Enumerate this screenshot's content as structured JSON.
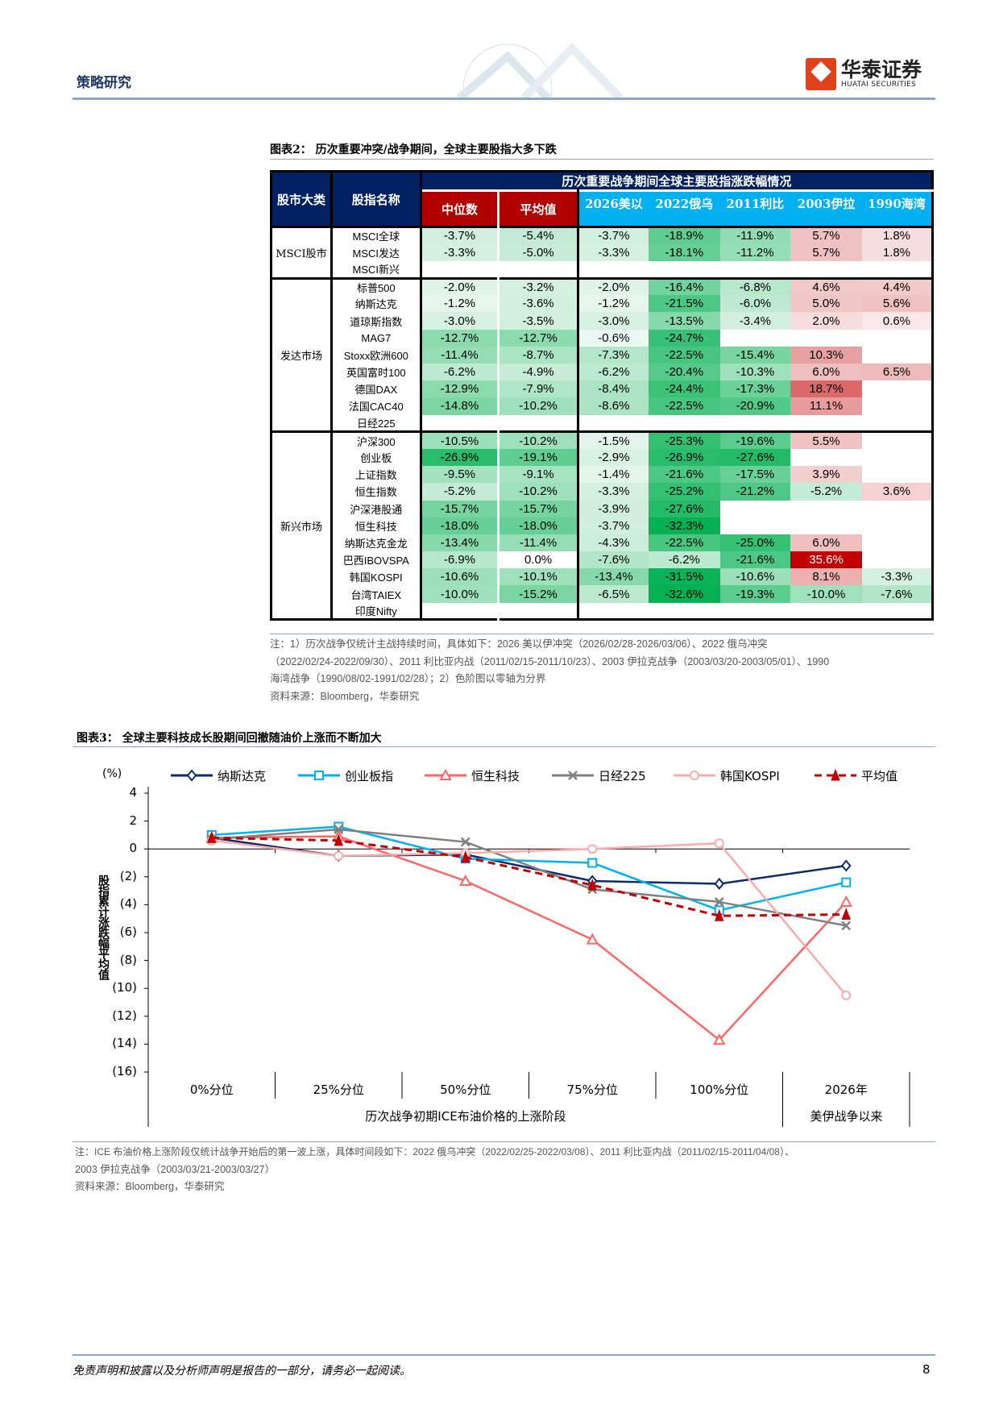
{
  "header": {
    "section": "策略研究",
    "logo_cn": "华泰证券",
    "logo_en": "HUATAI SECURITIES"
  },
  "figure2": {
    "title": "图表2： 历次重要冲突/战争期间，全球主要股指大多下跌",
    "table_title": "历次重要战争期间全球主要股指涨跌幅情况",
    "col_headers": [
      "股市大类",
      "股指名称",
      "中位数",
      "平均值",
      "2026美以",
      "2022俄乌",
      "2011利比",
      "2003伊拉",
      "1990海湾"
    ],
    "groups": [
      {
        "category": "MSCI股市",
        "rows": [
          {
            "name": "MSCI全球",
            "values": [
              -3.7,
              -5.4,
              -3.7,
              -18.9,
              -11.9,
              5.7,
              1.8
            ]
          },
          {
            "name": "MSCI发达",
            "values": [
              -3.3,
              -5.0,
              -3.3,
              -18.1,
              -11.2,
              5.7,
              1.8
            ]
          },
          {
            "name": "MSCI新兴",
            "values": [
              null,
              null,
              null,
              null,
              null,
              null,
              null
            ]
          }
        ]
      },
      {
        "category": "发达市场",
        "rows": [
          {
            "name": "标普500",
            "values": [
              -2.0,
              -3.2,
              -2.0,
              -16.4,
              -6.8,
              4.6,
              4.4
            ]
          },
          {
            "name": "纳斯达克",
            "values": [
              -1.2,
              -3.6,
              -1.2,
              -21.5,
              -6.0,
              5.0,
              5.6
            ]
          },
          {
            "name": "道琼斯指数",
            "values": [
              -3.0,
              -3.5,
              -3.0,
              -13.5,
              -3.4,
              2.0,
              0.6
            ]
          },
          {
            "name": "MAG7",
            "values": [
              -12.7,
              -12.7,
              -0.6,
              -24.7,
              null,
              null,
              null
            ]
          },
          {
            "name": "Stoxx欧洲600",
            "values": [
              -11.4,
              -8.7,
              -7.3,
              -22.5,
              -15.4,
              10.3,
              null
            ]
          },
          {
            "name": "英国富时100",
            "values": [
              -6.2,
              -4.9,
              -6.2,
              -20.4,
              -10.3,
              6.0,
              6.5
            ]
          },
          {
            "name": "德国DAX",
            "values": [
              -12.9,
              -7.9,
              -8.4,
              -24.4,
              -17.3,
              18.7,
              null
            ]
          },
          {
            "name": "法国CAC40",
            "values": [
              -14.8,
              -10.2,
              -8.6,
              -22.5,
              -20.9,
              11.1,
              null
            ]
          },
          {
            "name": "日经225",
            "values": [
              null,
              null,
              null,
              null,
              null,
              null,
              null
            ]
          }
        ]
      },
      {
        "category": "新兴市场",
        "rows": [
          {
            "name": "沪深300",
            "values": [
              -10.5,
              -10.2,
              -1.5,
              -25.3,
              -19.6,
              5.5,
              null
            ]
          },
          {
            "name": "创业板",
            "values": [
              -26.9,
              -19.1,
              -2.9,
              -26.9,
              -27.6,
              null,
              null
            ]
          },
          {
            "name": "上证指数",
            "values": [
              -9.5,
              -9.1,
              -1.4,
              -21.6,
              -17.5,
              3.9,
              null
            ]
          },
          {
            "name": "恒生指数",
            "values": [
              -5.2,
              -10.2,
              -3.3,
              -25.2,
              -21.2,
              -5.2,
              3.6
            ]
          },
          {
            "name": "沪深港股通",
            "values": [
              -15.7,
              -15.7,
              -3.9,
              -27.6,
              null,
              null,
              null
            ]
          },
          {
            "name": "恒生科技",
            "values": [
              -18.0,
              -18.0,
              -3.7,
              -32.3,
              null,
              null,
              null
            ]
          },
          {
            "name": "纳斯达克金龙",
            "values": [
              -13.4,
              -11.4,
              -4.3,
              -22.5,
              -25.0,
              6.0,
              null
            ]
          },
          {
            "name": "巴西IBOVSPA",
            "values": [
              -6.9,
              0.0,
              -7.6,
              -6.2,
              -21.6,
              35.6,
              null
            ]
          },
          {
            "name": "韩国KOSPI",
            "values": [
              -10.6,
              -10.1,
              -13.4,
              -31.5,
              -10.6,
              8.1,
              -3.3
            ]
          },
          {
            "name": "台湾TAIEX",
            "values": [
              -10.0,
              -15.2,
              -6.5,
              -32.6,
              -19.3,
              -10.0,
              -7.6
            ]
          },
          {
            "name": "印度Nifty",
            "values": [
              null,
              null,
              null,
              null,
              null,
              null,
              null
            ]
          }
        ]
      }
    ],
    "colors": {
      "negative": "#00b050",
      "positive": "#c00000",
      "header_navy": "#002060",
      "header_red": "#b00000",
      "header_blue": "#00b0f0"
    },
    "notes": [
      "注：1）历次战争仅统计主战持续时间，具体如下：2026 美以伊冲突（2026/02/28-2026/03/06）、2022 俄乌冲突",
      "（2022/02/24-2022/09/30）、2011 利比亚内战（2011/02/15-2011/10/23）、2003 伊拉克战争（2003/03/20-2003/05/01）、1990",
      "海湾战争（1990/08/02-1991/02/28）；2）色阶图以零轴为分界",
      "资料来源：Bloomberg，华泰研究"
    ]
  },
  "figure3": {
    "title": "图表3： 全球主要科技成长股期间回撤随油价上涨而不断加大",
    "notes": [
      "注：ICE 布油价格上涨阶段仅统计战争开始后的第一波上涨，具体时间段如下：2022 俄乌冲突（2022/02/25-2022/03/08）、2011 利比亚内战（2011/02/15-2011/04/08）、",
      "2003 伊拉克战争（2003/03/21-2003/03/27）",
      "资料来源：Bloomberg，华泰研究"
    ]
  },
  "chart_data": {
    "type": "line",
    "unit_label": "(%)",
    "ylabel": "股指累计涨跌幅平均值",
    "ylim": [
      -16,
      4
    ],
    "yticks": [
      4,
      2,
      0,
      -2,
      -4,
      -6,
      -8,
      -10,
      -12,
      -14,
      -16
    ],
    "ytick_labels": [
      "4",
      "2",
      "0",
      "(2)",
      "(4)",
      "(6)",
      "(8)",
      "(10)",
      "(12)",
      "(14)",
      "(16)"
    ],
    "categories": [
      "0%分位",
      "25%分位",
      "50%分位",
      "75%分位",
      "100%分位",
      "2026年"
    ],
    "category_groups": [
      {
        "label": "历次战争初期ICE布油价格的上涨阶段",
        "span": 5
      },
      {
        "label": "美伊战争以来",
        "span": 1
      }
    ],
    "grid": false,
    "legend": "top",
    "series": [
      {
        "name": "纳斯达克",
        "values": [
          0.8,
          -0.5,
          -0.4,
          -2.3,
          -2.5,
          -1.2
        ],
        "color": "#0d2a6b",
        "marker": "diamond",
        "dash": false
      },
      {
        "name": "创业板指",
        "values": [
          1.0,
          1.6,
          -0.7,
          -1.0,
          -4.4,
          -2.4
        ],
        "color": "#00b0f0",
        "marker": "square",
        "dash": false
      },
      {
        "name": "恒生科技",
        "values": [
          0.8,
          0.9,
          -2.3,
          -6.5,
          -13.7,
          -3.8
        ],
        "color": "#ff6666",
        "marker": "triangle",
        "dash": false
      },
      {
        "name": "日经225",
        "values": [
          0.7,
          1.4,
          0.5,
          -2.9,
          -3.8,
          -5.5
        ],
        "color": "#808080",
        "marker": "x",
        "dash": false
      },
      {
        "name": "韩国KOSPI",
        "values": [
          0.6,
          -0.5,
          -0.3,
          0.0,
          0.4,
          -10.5
        ],
        "color": "#ffaaaa",
        "marker": "circle",
        "dash": false
      },
      {
        "name": "平均值",
        "values": [
          0.8,
          0.6,
          -0.6,
          -2.6,
          -4.8,
          -4.7
        ],
        "color": "#c00000",
        "marker": "filled-triangle",
        "dash": true
      }
    ]
  },
  "footer": {
    "disclaimer": "免责声明和披露以及分析师声明是报告的一部分，请务必一起阅读。",
    "page": "8"
  }
}
